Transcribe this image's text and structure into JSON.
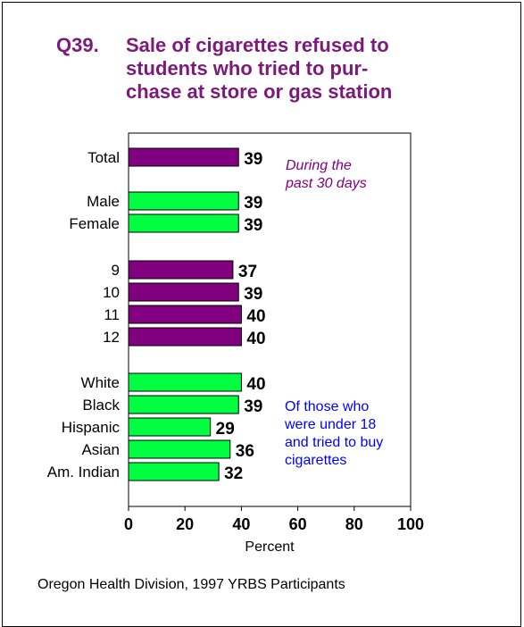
{
  "chart_data": {
    "type": "bar",
    "orientation": "horizontal",
    "title_number": "Q39.",
    "title_lines": [
      "Sale of cigarettes refused to",
      "students who tried to pur-",
      "chase at store or gas station"
    ],
    "xlabel": "Percent",
    "xlim": [
      0,
      100
    ],
    "xticks": [
      "0",
      "20",
      "40",
      "60",
      "80",
      "100"
    ],
    "grid": false,
    "categories": [
      "Total",
      "Male",
      "Female",
      "9",
      "10",
      "11",
      "12",
      "White",
      "Black",
      "Hispanic",
      "Asian",
      "Am. Indian"
    ],
    "values": [
      39,
      39,
      39,
      37,
      39,
      40,
      40,
      40,
      39,
      29,
      36,
      32
    ],
    "value_labels": [
      "39",
      "39",
      "39",
      "37",
      "39",
      "40",
      "40",
      "40",
      "39",
      "29",
      "36",
      "32"
    ],
    "groups": [
      {
        "categories": [
          "Total"
        ],
        "color": "#800080"
      },
      {
        "categories": [
          "Male",
          "Female"
        ],
        "color": "#00ff40"
      },
      {
        "categories": [
          "9",
          "10",
          "11",
          "12"
        ],
        "color": "#800080"
      },
      {
        "categories": [
          "White",
          "Black",
          "Hispanic",
          "Asian",
          "Am. Indian"
        ],
        "color": "#00ff40"
      }
    ],
    "annotations": [
      {
        "lines": [
          "During the",
          "past 30 days"
        ],
        "color": "#800080",
        "style": "italic"
      },
      {
        "lines": [
          "Of those who",
          "were under 18",
          "and tried to buy",
          "cigarettes"
        ],
        "color": "#0000ff",
        "style": "normal"
      }
    ]
  },
  "footer": {
    "source": "Oregon Health Division, 1997 YRBS Participants"
  }
}
